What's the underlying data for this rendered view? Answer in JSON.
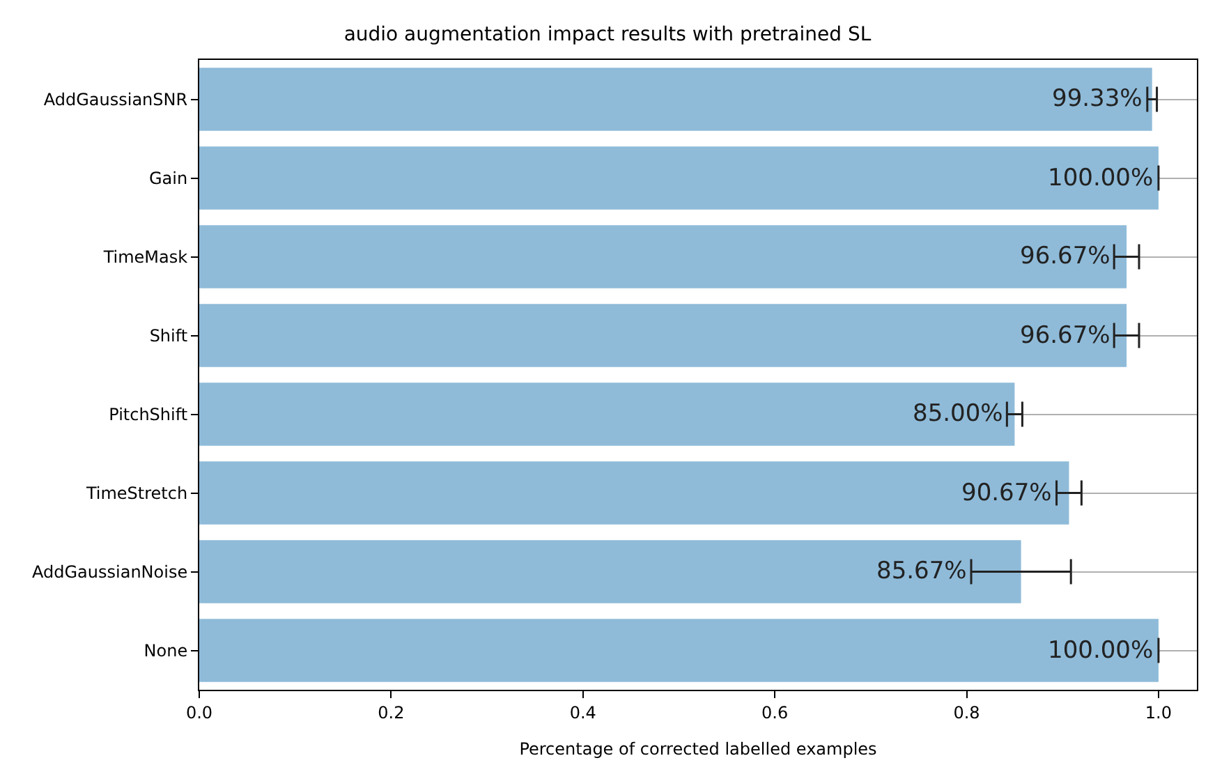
{
  "chart_data": {
    "type": "bar",
    "orientation": "horizontal",
    "title": "audio augmentation impact results with pretrained SL",
    "xlabel": "Percentage of corrected labelled examples",
    "categories": [
      "AddGaussianSNR",
      "Gain",
      "TimeMask",
      "Shift",
      "PitchShift",
      "TimeStretch",
      "AddGaussianNoise",
      "None"
    ],
    "values": [
      0.9933,
      1.0,
      0.9667,
      0.9667,
      0.85,
      0.9067,
      0.8567,
      1.0
    ],
    "errors": [
      0.005,
      0,
      0.013,
      0.013,
      0.008,
      0.013,
      0.052,
      0
    ],
    "value_labels": [
      "99.33%",
      "100.00%",
      "96.67%",
      "96.67%",
      "85.00%",
      "90.67%",
      "85.67%",
      "100.00%"
    ],
    "color": "#8fbbd9",
    "xlim": [
      0,
      1.04
    ],
    "xticks": [
      {
        "value": 0,
        "label": "0.0"
      },
      0.2,
      0.4,
      0.6,
      0.8,
      {
        "value": 1,
        "label": "1.0"
      }
    ],
    "grid": "y"
  }
}
